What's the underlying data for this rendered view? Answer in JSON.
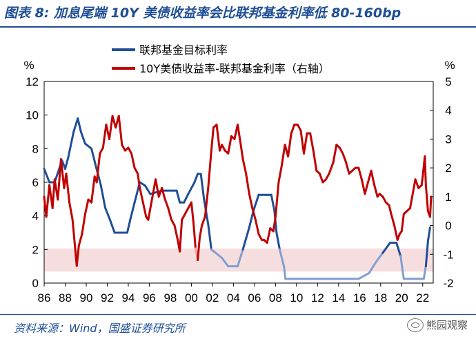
{
  "title": "图表 8: 加息尾端 10Y 美债收益率会比联邦基金利率低 80-160bp",
  "source": "资料来源：Wind，国盛证券研究所",
  "watermark": "熊园观察",
  "colors": {
    "title": "#1f4e96",
    "fed": "#1f4e96",
    "fed_light": "#7f9fd0",
    "spread": "#c00000",
    "spread_light": "#e8a0a0",
    "band": "#f6dede"
  },
  "chart_data": {
    "type": "line",
    "left_unit": "%",
    "right_unit": "%",
    "y_left": {
      "min": 0,
      "max": 12,
      "ticks": [
        0,
        2,
        4,
        6,
        8,
        10,
        12
      ]
    },
    "y_right": {
      "min": -2,
      "max": 5,
      "ticks": [
        -2,
        -1,
        0,
        1,
        2,
        3,
        4,
        5
      ]
    },
    "x_range": [
      1986,
      2023
    ],
    "x_ticks": [
      "86",
      "88",
      "90",
      "92",
      "94",
      "96",
      "98",
      "00",
      "02",
      "04",
      "06",
      "08",
      "10",
      "12",
      "14",
      "16",
      "18",
      "20",
      "22"
    ],
    "shaded_band_right_axis": [
      -0.8,
      -1.6
    ],
    "legend_position": "top-left",
    "series": [
      {
        "name": "联邦基金目标利率",
        "axis": "left",
        "points": [
          [
            1986.0,
            6.8
          ],
          [
            1986.5,
            6.0
          ],
          [
            1987.0,
            6.0
          ],
          [
            1987.7,
            7.3
          ],
          [
            1988.0,
            6.8
          ],
          [
            1988.3,
            7.5
          ],
          [
            1988.8,
            9.0
          ],
          [
            1989.2,
            9.8
          ],
          [
            1989.5,
            9.0
          ],
          [
            1989.9,
            8.3
          ],
          [
            1990.5,
            8.0
          ],
          [
            1990.9,
            7.0
          ],
          [
            1991.4,
            5.8
          ],
          [
            1991.8,
            4.5
          ],
          [
            1992.3,
            3.7
          ],
          [
            1992.7,
            3.0
          ],
          [
            1993.0,
            3.0
          ],
          [
            1993.9,
            3.0
          ],
          [
            1994.2,
            3.8
          ],
          [
            1994.6,
            4.8
          ],
          [
            1995.1,
            6.0
          ],
          [
            1995.6,
            5.8
          ],
          [
            1996.1,
            5.3
          ],
          [
            1997.2,
            5.5
          ],
          [
            1998.6,
            5.5
          ],
          [
            1998.9,
            4.8
          ],
          [
            1999.3,
            4.8
          ],
          [
            1999.7,
            5.3
          ],
          [
            2000.3,
            6.0
          ],
          [
            2000.6,
            6.5
          ],
          [
            2000.9,
            6.5
          ],
          [
            2001.2,
            5.0
          ],
          [
            2001.6,
            3.5
          ],
          [
            2001.9,
            2.0
          ],
          [
            2002.9,
            1.5
          ],
          [
            2003.5,
            1.0
          ],
          [
            2004.4,
            1.0
          ],
          [
            2004.9,
            2.0
          ],
          [
            2005.5,
            3.3
          ],
          [
            2005.9,
            4.3
          ],
          [
            2006.4,
            5.25
          ],
          [
            2007.6,
            5.25
          ],
          [
            2007.9,
            4.3
          ],
          [
            2008.1,
            3.0
          ],
          [
            2008.4,
            2.0
          ],
          [
            2008.8,
            1.0
          ],
          [
            2008.95,
            0.25
          ],
          [
            2015.9,
            0.25
          ],
          [
            2016.9,
            0.6
          ],
          [
            2017.5,
            1.2
          ],
          [
            2018.2,
            1.8
          ],
          [
            2018.9,
            2.4
          ],
          [
            2019.5,
            2.4
          ],
          [
            2019.9,
            1.6
          ],
          [
            2020.2,
            0.25
          ],
          [
            2022.1,
            0.25
          ],
          [
            2022.3,
            1.0
          ],
          [
            2022.5,
            2.5
          ],
          [
            2022.7,
            3.3
          ]
        ]
      },
      {
        "name": "10Y美债收益率-联邦基金利率（右轴）",
        "axis": "right",
        "points": [
          [
            1986.0,
            1.0
          ],
          [
            1986.2,
            0.3
          ],
          [
            1986.5,
            1.4
          ],
          [
            1986.8,
            0.6
          ],
          [
            1987.0,
            1.6
          ],
          [
            1987.3,
            0.9
          ],
          [
            1987.6,
            2.3
          ],
          [
            1987.9,
            1.3
          ],
          [
            1988.1,
            1.8
          ],
          [
            1988.4,
            0.8
          ],
          [
            1988.7,
            0.2
          ],
          [
            1988.9,
            -0.6
          ],
          [
            1989.1,
            -1.4
          ],
          [
            1989.3,
            -0.7
          ],
          [
            1989.6,
            -0.3
          ],
          [
            1989.9,
            0.4
          ],
          [
            1990.2,
            0.9
          ],
          [
            1990.5,
            0.8
          ],
          [
            1990.8,
            1.7
          ],
          [
            1991.0,
            1.5
          ],
          [
            1991.3,
            2.5
          ],
          [
            1991.6,
            2.7
          ],
          [
            1991.9,
            3.5
          ],
          [
            1992.2,
            3.0
          ],
          [
            1992.5,
            3.8
          ],
          [
            1992.8,
            3.4
          ],
          [
            1993.1,
            3.8
          ],
          [
            1993.4,
            2.8
          ],
          [
            1993.7,
            2.6
          ],
          [
            1994.0,
            2.7
          ],
          [
            1994.3,
            2.5
          ],
          [
            1994.6,
            2.0
          ],
          [
            1994.9,
            1.8
          ],
          [
            1995.1,
            1.3
          ],
          [
            1995.4,
            0.8
          ],
          [
            1995.7,
            0.3
          ],
          [
            1995.9,
            0.2
          ],
          [
            1996.2,
            0.8
          ],
          [
            1996.6,
            1.6
          ],
          [
            1996.9,
            1.0
          ],
          [
            1997.2,
            1.3
          ],
          [
            1997.5,
            0.9
          ],
          [
            1997.8,
            0.6
          ],
          [
            1998.1,
            0.2
          ],
          [
            1998.4,
            0.0
          ],
          [
            1998.7,
            -0.5
          ],
          [
            1998.9,
            -0.9
          ],
          [
            1999.1,
            0.2
          ],
          [
            1999.4,
            0.4
          ],
          [
            1999.7,
            0.6
          ],
          [
            2000.0,
            0.8
          ],
          [
            2000.2,
            0.1
          ],
          [
            2000.4,
            -0.8
          ],
          [
            2000.6,
            -1.2
          ],
          [
            2000.8,
            -0.4
          ],
          [
            2001.0,
            0.0
          ],
          [
            2001.3,
            0.3
          ],
          [
            2001.6,
            1.3
          ],
          [
            2001.9,
            2.6
          ],
          [
            2002.1,
            3.4
          ],
          [
            2002.4,
            3.5
          ],
          [
            2002.7,
            2.6
          ],
          [
            2002.9,
            2.8
          ],
          [
            2003.2,
            2.6
          ],
          [
            2003.5,
            2.5
          ],
          [
            2003.8,
            3.1
          ],
          [
            2004.1,
            3.0
          ],
          [
            2004.4,
            3.5
          ],
          [
            2004.7,
            2.8
          ],
          [
            2004.9,
            2.3
          ],
          [
            2005.2,
            1.8
          ],
          [
            2005.5,
            1.1
          ],
          [
            2005.8,
            0.6
          ],
          [
            2006.1,
            0.2
          ],
          [
            2006.4,
            -0.3
          ],
          [
            2006.7,
            -0.5
          ],
          [
            2006.9,
            -0.5
          ],
          [
            2007.2,
            -0.6
          ],
          [
            2007.5,
            -0.1
          ],
          [
            2007.8,
            -0.2
          ],
          [
            2008.0,
            0.3
          ],
          [
            2008.3,
            1.5
          ],
          [
            2008.6,
            2.1
          ],
          [
            2008.9,
            2.8
          ],
          [
            2009.2,
            2.4
          ],
          [
            2009.5,
            3.2
          ],
          [
            2009.8,
            3.5
          ],
          [
            2010.1,
            3.5
          ],
          [
            2010.4,
            3.3
          ],
          [
            2010.7,
            2.5
          ],
          [
            2011.0,
            3.2
          ],
          [
            2011.3,
            3.2
          ],
          [
            2011.6,
            2.6
          ],
          [
            2011.9,
            1.9
          ],
          [
            2012.2,
            1.8
          ],
          [
            2012.5,
            1.5
          ],
          [
            2012.8,
            1.6
          ],
          [
            2013.1,
            1.8
          ],
          [
            2013.5,
            2.2
          ],
          [
            2013.8,
            2.8
          ],
          [
            2014.1,
            2.7
          ],
          [
            2014.4,
            2.5
          ],
          [
            2014.7,
            2.2
          ],
          [
            2015.0,
            1.8
          ],
          [
            2015.3,
            1.9
          ],
          [
            2015.6,
            2.0
          ],
          [
            2015.9,
            2.0
          ],
          [
            2016.2,
            1.6
          ],
          [
            2016.5,
            1.1
          ],
          [
            2016.8,
            1.5
          ],
          [
            2017.1,
            1.9
          ],
          [
            2017.4,
            1.4
          ],
          [
            2017.7,
            1.0
          ],
          [
            2017.9,
            1.1
          ],
          [
            2018.2,
            1.0
          ],
          [
            2018.5,
            0.8
          ],
          [
            2018.8,
            0.7
          ],
          [
            2019.0,
            0.4
          ],
          [
            2019.3,
            0.0
          ],
          [
            2019.6,
            -0.5
          ],
          [
            2019.8,
            -0.3
          ],
          [
            2020.0,
            -0.2
          ],
          [
            2020.2,
            0.4
          ],
          [
            2020.5,
            0.5
          ],
          [
            2020.8,
            0.6
          ],
          [
            2021.0,
            1.0
          ],
          [
            2021.3,
            1.6
          ],
          [
            2021.6,
            1.3
          ],
          [
            2021.9,
            1.4
          ],
          [
            2022.0,
            1.7
          ],
          [
            2022.2,
            2.4
          ],
          [
            2022.3,
            1.4
          ],
          [
            2022.5,
            0.5
          ],
          [
            2022.7,
            0.3
          ],
          [
            2022.8,
            1.0
          ]
        ]
      }
    ]
  },
  "legend": {
    "fed": "联邦基金目标利率",
    "spread": "10Y美债收益率-联邦基金利率（右轴）"
  }
}
